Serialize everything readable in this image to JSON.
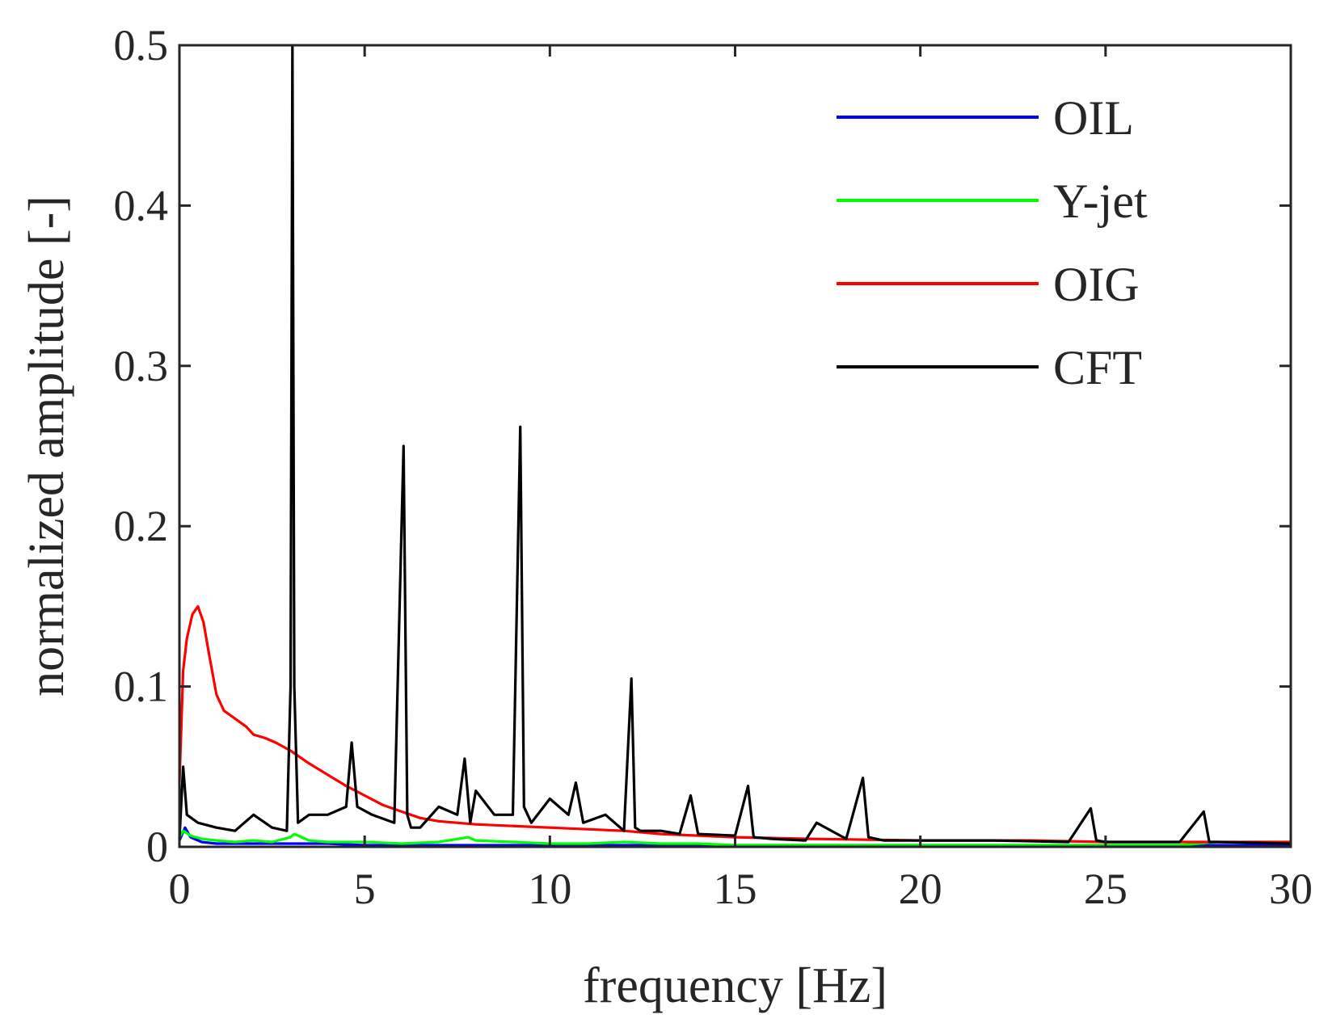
{
  "chart_data": {
    "type": "line",
    "title": "",
    "xlabel": "frequency [Hz]",
    "ylabel": "normalized amplitude [-]",
    "xlim": [
      0,
      30
    ],
    "ylim": [
      0,
      0.5
    ],
    "grid": false,
    "legend_position": "top-right",
    "xticks": [
      0,
      5,
      10,
      15,
      20,
      25,
      30
    ],
    "xtick_labels": [
      "0",
      "5",
      "10",
      "15",
      "20",
      "25",
      "30"
    ],
    "yticks": [
      0,
      0.1,
      0.2,
      0.3,
      0.4,
      0.5
    ],
    "ytick_labels": [
      "0",
      "0.1",
      "0.2",
      "0.3",
      "0.4",
      "0.5"
    ],
    "series": [
      {
        "name": "OIL",
        "color": "#0000ff",
        "x": [
          0,
          0.15,
          0.3,
          0.6,
          1,
          2,
          3,
          4,
          5,
          6,
          8,
          10,
          12,
          15,
          20,
          25,
          30
        ],
        "y": [
          0.004,
          0.012,
          0.006,
          0.003,
          0.002,
          0.002,
          0.002,
          0.002,
          0.001,
          0.001,
          0.001,
          0.001,
          0.001,
          0.001,
          0.001,
          0.001,
          0.001
        ]
      },
      {
        "name": "Y-jet",
        "color": "#00ff00",
        "x": [
          0,
          0.1,
          0.3,
          0.6,
          1,
          1.5,
          2,
          2.5,
          3,
          3.1,
          3.5,
          4,
          5,
          6,
          7,
          7.8,
          8,
          9,
          10,
          11,
          12,
          13,
          14,
          15,
          17,
          20,
          23,
          25,
          27,
          28,
          30
        ],
        "y": [
          0.006,
          0.01,
          0.007,
          0.005,
          0.004,
          0.003,
          0.004,
          0.003,
          0.006,
          0.008,
          0.004,
          0.003,
          0.003,
          0.002,
          0.003,
          0.006,
          0.004,
          0.003,
          0.002,
          0.002,
          0.003,
          0.002,
          0.002,
          0.001,
          0.001,
          0.001,
          0.001,
          0.001,
          0.001,
          0.003,
          0.003
        ]
      },
      {
        "name": "OIG",
        "color": "#ff0000",
        "x": [
          0,
          0.1,
          0.2,
          0.35,
          0.5,
          0.65,
          0.8,
          1,
          1.2,
          1.5,
          1.8,
          2,
          2.3,
          2.6,
          3,
          3.5,
          4,
          4.5,
          5,
          5.5,
          6,
          6.5,
          7,
          8,
          9,
          10,
          11,
          12,
          13,
          14,
          15,
          17,
          20,
          23,
          25,
          28,
          30
        ],
        "y": [
          0.04,
          0.11,
          0.13,
          0.145,
          0.15,
          0.14,
          0.12,
          0.095,
          0.085,
          0.08,
          0.075,
          0.07,
          0.068,
          0.065,
          0.06,
          0.052,
          0.045,
          0.038,
          0.032,
          0.026,
          0.022,
          0.018,
          0.016,
          0.014,
          0.013,
          0.012,
          0.011,
          0.01,
          0.008,
          0.007,
          0.006,
          0.005,
          0.004,
          0.004,
          0.003,
          0.003,
          0.003
        ]
      },
      {
        "name": "CFT",
        "color": "#000000",
        "x": [
          0,
          0.1,
          0.2,
          0.5,
          1,
          1.5,
          2,
          2.5,
          2.9,
          3.0,
          3.05,
          3.1,
          3.2,
          3.5,
          4,
          4.5,
          4.65,
          4.8,
          5.2,
          5.8,
          6.05,
          6.15,
          6.25,
          6.5,
          7,
          7.5,
          7.7,
          7.85,
          8,
          8.5,
          9.0,
          9.2,
          9.3,
          9.5,
          10,
          10.5,
          10.7,
          10.9,
          11.5,
          12,
          12.2,
          12.3,
          12.45,
          13,
          13.5,
          13.8,
          14,
          15,
          15.35,
          15.5,
          16,
          16.9,
          17.2,
          18,
          18.45,
          18.6,
          19,
          20,
          22,
          24,
          24.6,
          24.75,
          25,
          27,
          27.65,
          27.8,
          28,
          30
        ],
        "y": [
          0.005,
          0.05,
          0.02,
          0.015,
          0.012,
          0.01,
          0.02,
          0.012,
          0.01,
          0.1,
          0.5,
          0.1,
          0.015,
          0.02,
          0.02,
          0.025,
          0.065,
          0.025,
          0.02,
          0.015,
          0.25,
          0.02,
          0.012,
          0.012,
          0.025,
          0.02,
          0.055,
          0.015,
          0.035,
          0.02,
          0.02,
          0.262,
          0.025,
          0.015,
          0.03,
          0.02,
          0.04,
          0.015,
          0.02,
          0.01,
          0.105,
          0.012,
          0.01,
          0.01,
          0.008,
          0.032,
          0.008,
          0.007,
          0.038,
          0.006,
          0.005,
          0.004,
          0.015,
          0.005,
          0.043,
          0.006,
          0.004,
          0.004,
          0.004,
          0.003,
          0.024,
          0.004,
          0.003,
          0.003,
          0.022,
          0.003,
          0.003,
          0.002
        ]
      }
    ]
  }
}
